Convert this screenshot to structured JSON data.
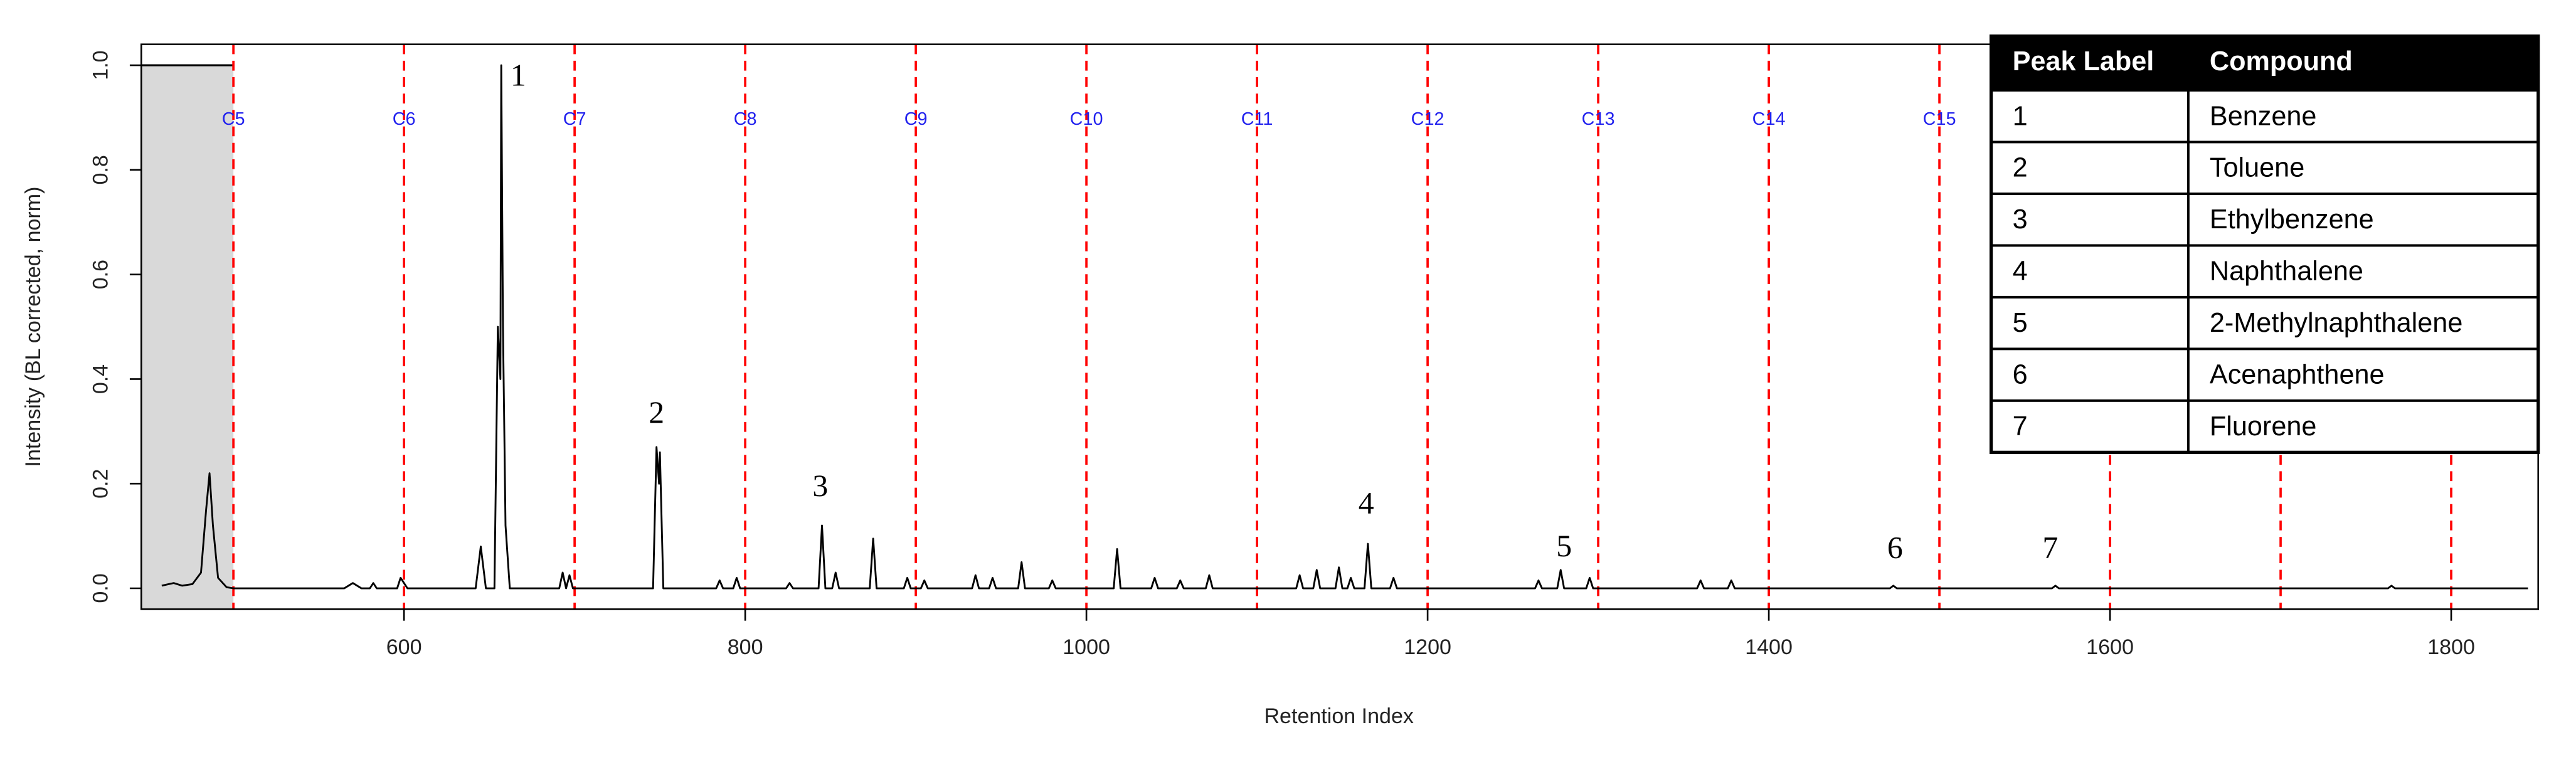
{
  "chart_data": {
    "type": "line",
    "x_label": "Retention Index",
    "y_label": "Intensity (BL corrected, norm)",
    "xlim": [
      446,
      1851
    ],
    "ylim": [
      -0.04,
      1.04
    ],
    "xticks": [
      600,
      800,
      1000,
      1200,
      1400,
      1600,
      1800
    ],
    "yticks": [
      {
        "value": 0,
        "label": "0.0"
      },
      0.2,
      0.4,
      0.6,
      0.8,
      {
        "value": 1,
        "label": "1.0"
      }
    ],
    "color": "#000000",
    "excluded_region": {
      "x": [
        446,
        500
      ],
      "top": 1,
      "color": "#d9d9d9"
    },
    "reference_lines": {
      "color": "#ff0000",
      "label_color": "#2222ee",
      "label_y": 0.895,
      "x": [
        500,
        600,
        700,
        800,
        900,
        1000,
        1100,
        1200,
        1300,
        1400,
        1500,
        1600,
        1700,
        1800
      ],
      "labels": [
        "C5",
        "C6",
        "C7",
        "C8",
        "C9",
        "C10",
        "C11",
        "C12",
        "C13",
        "C14",
        "C15",
        null,
        null,
        null
      ]
    },
    "annotations": [
      {
        "text": "1",
        "x": 667,
        "y": 0.975
      },
      {
        "text": "2",
        "x": 748,
        "y": 0.33
      },
      {
        "text": "3",
        "x": 844,
        "y": 0.19
      },
      {
        "text": "4",
        "x": 1164,
        "y": 0.157
      },
      {
        "text": "5",
        "x": 1280,
        "y": 0.075
      },
      {
        "text": "6",
        "x": 1474,
        "y": 0.072
      },
      {
        "text": "7",
        "x": 1565,
        "y": 0.072
      }
    ],
    "x": [
      458,
      465,
      470,
      476,
      481,
      484,
      486,
      488,
      491,
      496,
      500,
      565,
      570,
      575,
      580,
      582,
      584,
      596,
      598,
      600,
      602,
      642,
      645,
      648,
      653,
      655,
      656.5,
      657,
      658,
      659.5,
      662,
      691,
      693,
      695,
      697,
      699,
      746,
      748,
      749.5,
      750,
      752,
      783,
      785,
      787,
      793,
      795,
      797,
      824,
      826,
      828,
      843,
      845,
      847,
      851,
      853,
      855,
      873,
      875,
      877,
      893,
      895,
      897,
      903,
      905,
      907,
      933,
      935,
      937,
      943,
      945,
      947,
      960,
      962,
      964,
      978,
      980,
      982,
      1016,
      1018,
      1020,
      1038,
      1040,
      1042,
      1053,
      1055,
      1057,
      1070,
      1072,
      1074,
      1123,
      1125,
      1127,
      1133,
      1135,
      1137,
      1146,
      1148,
      1150,
      1153,
      1155,
      1157,
      1163,
      1165,
      1167,
      1178,
      1180,
      1182,
      1263,
      1265,
      1267,
      1276,
      1278,
      1280,
      1293,
      1295,
      1297,
      1358,
      1360,
      1362,
      1376,
      1378,
      1380,
      1471,
      1473,
      1475,
      1566,
      1568,
      1570,
      1763,
      1765,
      1767,
      1845
    ],
    "values": [
      0.005,
      0.01,
      0.005,
      0.008,
      0.03,
      0.15,
      0.22,
      0.12,
      0.02,
      0.002,
      0,
      0,
      0.01,
      0,
      0,
      0.01,
      0,
      0,
      0.02,
      0.01,
      0,
      0,
      0.08,
      0,
      0,
      0.5,
      0.4,
      1.0,
      0.5,
      0.12,
      0,
      0,
      0.03,
      0,
      0.025,
      0,
      0,
      0.27,
      0.2,
      0.26,
      0,
      0,
      0.015,
      0,
      0,
      0.02,
      0,
      0,
      0.01,
      0,
      0,
      0.12,
      0,
      0,
      0.03,
      0,
      0,
      0.095,
      0,
      0,
      0.02,
      0,
      0,
      0.015,
      0,
      0,
      0.025,
      0,
      0,
      0.02,
      0,
      0,
      0.05,
      0,
      0,
      0.015,
      0,
      0,
      0.075,
      0,
      0,
      0.02,
      0,
      0,
      0.015,
      0,
      0,
      0.025,
      0,
      0,
      0.025,
      0,
      0,
      0.035,
      0,
      0,
      0.04,
      0,
      0,
      0.02,
      0,
      0,
      0.085,
      0,
      0,
      0.02,
      0,
      0,
      0.015,
      0,
      0,
      0.035,
      0,
      0,
      0.02,
      0,
      0,
      0.015,
      0,
      0,
      0.015,
      0,
      0,
      0.005,
      0,
      0,
      0.005,
      0,
      0,
      0.005,
      0,
      0
    ]
  },
  "table": {
    "header": [
      "Peak Label",
      "Compound"
    ],
    "rows": [
      [
        "1",
        "Benzene"
      ],
      [
        "2",
        "Toluene"
      ],
      [
        "3",
        "Ethylbenzene"
      ],
      [
        "4",
        "Naphthalene"
      ],
      [
        "5",
        "2-Methylnaphthalene"
      ],
      [
        "6",
        "Acenaphthene"
      ],
      [
        "7",
        "Fluorene"
      ]
    ]
  }
}
